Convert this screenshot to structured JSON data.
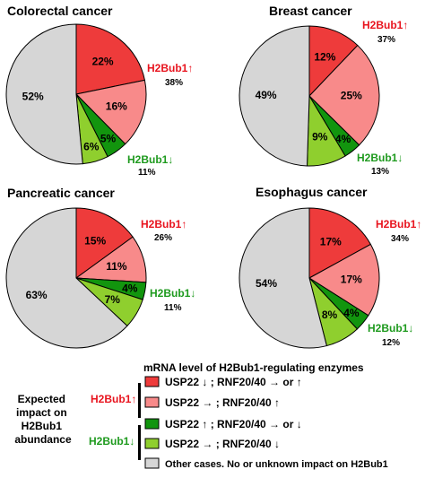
{
  "chart_data": [
    {
      "type": "pie",
      "title": "Colorectal cancer",
      "slices": [
        {
          "category": "usp22_down_rnf_up",
          "value": 22,
          "label": "22%"
        },
        {
          "category": "usp22_flat_rnf_up",
          "value": 16,
          "label": "16%"
        },
        {
          "category": "usp22_up_rnf_down",
          "value": 5,
          "label": "5%"
        },
        {
          "category": "usp22_flat_rnf_down",
          "value": 6,
          "label": "6%"
        },
        {
          "category": "other",
          "value": 52,
          "label": "52%"
        }
      ],
      "annotations": [
        {
          "text": "H2Bub1",
          "arrow": "↑",
          "value": "38%",
          "color": "#e8141e"
        },
        {
          "text": "H2Bub1",
          "arrow": "↓",
          "value": "11%",
          "color": "#1e9a1e"
        }
      ]
    },
    {
      "type": "pie",
      "title": "Breast cancer",
      "slices": [
        {
          "category": "usp22_down_rnf_up",
          "value": 12,
          "label": "12%"
        },
        {
          "category": "usp22_flat_rnf_up",
          "value": 25,
          "label": "25%"
        },
        {
          "category": "usp22_up_rnf_down",
          "value": 4,
          "label": "4%"
        },
        {
          "category": "usp22_flat_rnf_down",
          "value": 9,
          "label": "9%"
        },
        {
          "category": "other",
          "value": 49,
          "label": "49%"
        }
      ],
      "annotations": [
        {
          "text": "H2Bub1",
          "arrow": "↑",
          "value": "37%",
          "color": "#e8141e"
        },
        {
          "text": "H2Bub1",
          "arrow": "↓",
          "value": "13%",
          "color": "#1e9a1e"
        }
      ]
    },
    {
      "type": "pie",
      "title": "Pancreatic cancer",
      "slices": [
        {
          "category": "usp22_down_rnf_up",
          "value": 15,
          "label": "15%"
        },
        {
          "category": "usp22_flat_rnf_up",
          "value": 11,
          "label": "11%"
        },
        {
          "category": "usp22_up_rnf_down",
          "value": 4,
          "label": "4%"
        },
        {
          "category": "usp22_flat_rnf_down",
          "value": 7,
          "label": "7%"
        },
        {
          "category": "other",
          "value": 63,
          "label": "63%"
        }
      ],
      "annotations": [
        {
          "text": "H2Bub1",
          "arrow": "↑",
          "value": "26%",
          "color": "#e8141e"
        },
        {
          "text": "H2Bub1",
          "arrow": "↓",
          "value": "11%",
          "color": "#1e9a1e"
        }
      ]
    },
    {
      "type": "pie",
      "title": "Esophagus cancer",
      "slices": [
        {
          "category": "usp22_down_rnf_up",
          "value": 17,
          "label": "17%"
        },
        {
          "category": "usp22_flat_rnf_up",
          "value": 17,
          "label": "17%"
        },
        {
          "category": "usp22_up_rnf_down",
          "value": 4,
          "label": "4%"
        },
        {
          "category": "usp22_flat_rnf_down",
          "value": 8,
          "label": "8%"
        },
        {
          "category": "other",
          "value": 54,
          "label": "54%"
        }
      ],
      "annotations": [
        {
          "text": "H2Bub1",
          "arrow": "↑",
          "value": "34%",
          "color": "#e8141e"
        },
        {
          "text": "H2Bub1",
          "arrow": "↓",
          "value": "12%",
          "color": "#1e9a1e"
        }
      ]
    }
  ],
  "colors": {
    "usp22_down_rnf_up": "#ee3b3b",
    "usp22_flat_rnf_up": "#f88a8a",
    "usp22_up_rnf_down": "#12950e",
    "usp22_flat_rnf_down": "#8fcf2e",
    "other": "#d6d6d6",
    "h2bub1_up_text": "#e8141e",
    "h2bub1_down_text": "#1e9a1e"
  },
  "legend": {
    "title": "mRNA level of H2Bub1-regulating enzymes",
    "side_label_lines": [
      "Expected",
      "impact on",
      "H2Bub1",
      "abundance"
    ],
    "group_up": {
      "text": "H2Bub1",
      "arrow": "↑"
    },
    "group_down": {
      "text": "H2Bub1",
      "arrow": "↓"
    },
    "items": [
      {
        "category": "usp22_down_rnf_up",
        "label": "USP22 ↓ ; RNF20/40 → or ↑"
      },
      {
        "category": "usp22_flat_rnf_up",
        "label": "USP22 → ; RNF20/40 ↑"
      },
      {
        "category": "usp22_up_rnf_down",
        "label": "USP22 ↑ ; RNF20/40 → or ↓"
      },
      {
        "category": "usp22_flat_rnf_down",
        "label": "USP22 → ; RNF20/40 ↓"
      },
      {
        "category": "other",
        "label": "Other cases. No or unknown impact on H2Bub1"
      }
    ]
  }
}
